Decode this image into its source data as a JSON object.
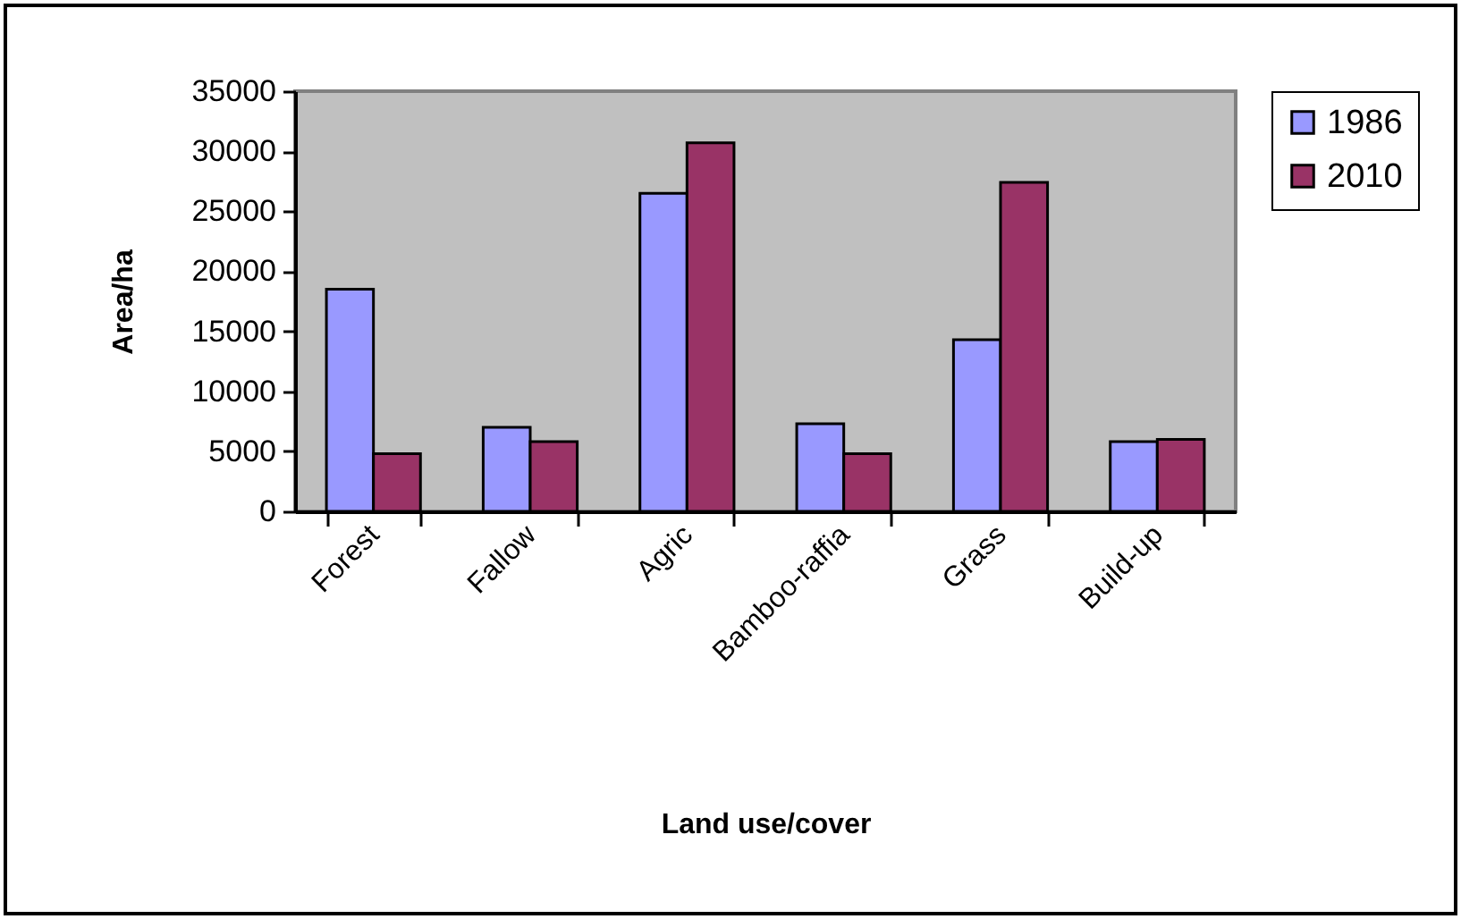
{
  "chart_data": {
    "type": "bar",
    "xlabel": "Land use/cover",
    "ylabel": "Area/ha",
    "categories": [
      "Forest",
      "Fallow",
      "Agric",
      "Bamboo-raffia",
      "Grass",
      "Build-up"
    ],
    "series": [
      {
        "name": "1986",
        "color": "#9999ff",
        "values": [
          18500,
          7000,
          26500,
          7300,
          14300,
          5800
        ]
      },
      {
        "name": "2010",
        "color": "#993366",
        "values": [
          4800,
          5800,
          30700,
          4800,
          27400,
          6000
        ]
      }
    ],
    "ylim": [
      0,
      35000
    ],
    "yticks": [
      0,
      5000,
      10000,
      15000,
      20000,
      25000,
      30000,
      35000
    ],
    "legend": "right",
    "grid": false
  }
}
